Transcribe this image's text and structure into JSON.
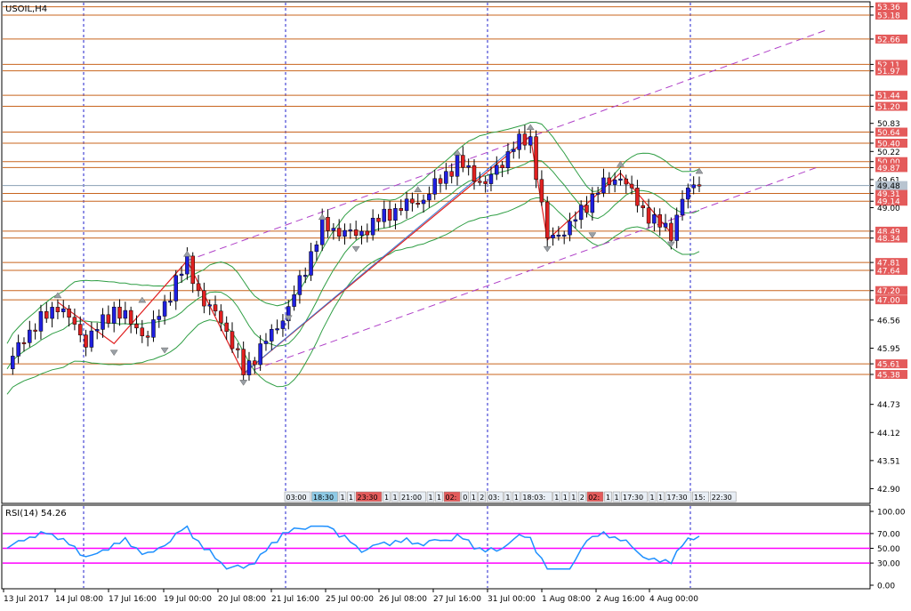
{
  "window": {
    "title": "USOIL,H4"
  },
  "main_chart": {
    "y_range": [
      42.6,
      53.45
    ],
    "price_labels": [
      "53.36",
      "53.18",
      "52.66",
      "52.11",
      "51.97",
      "51.44",
      "51.20",
      "50.83",
      "50.64",
      "50.40",
      "50.22",
      "50.00",
      "49.87",
      "49.61",
      "49.48",
      "49.31",
      "49.14",
      "49.00",
      "48.49",
      "48.34",
      "47.81",
      "47.64",
      "47.20",
      "47.00",
      "46.56",
      "45.95",
      "45.61",
      "45.38",
      "44.73",
      "44.12",
      "43.51",
      "42.90"
    ],
    "highlighted_labels": [
      "53.36",
      "53.18",
      "52.66",
      "52.11",
      "51.97",
      "51.44",
      "51.20",
      "50.64",
      "50.40",
      "50.00",
      "49.87",
      "49.31",
      "49.14",
      "48.49",
      "48.34",
      "47.81",
      "47.64",
      "47.20",
      "47.00",
      "45.61",
      "45.38"
    ],
    "current_price": "49.48",
    "levels": [
      53.36,
      53.18,
      52.66,
      52.11,
      51.97,
      51.44,
      51.2,
      50.64,
      50.4,
      50.0,
      49.87,
      49.31,
      49.14,
      48.49,
      48.34,
      47.81,
      47.64,
      47.2,
      47.0,
      45.61,
      45.38
    ],
    "session_labels": [
      "03:00",
      "18:30",
      "1",
      "1",
      "23:30",
      "1",
      "1",
      "21:00",
      "1",
      "1",
      "02:",
      "0",
      "1",
      "2",
      "03:",
      "1",
      "1",
      "18:03:",
      "1",
      "1",
      "1",
      "2",
      "02:",
      "1",
      "1",
      "17:30",
      "1",
      "1",
      "17:30",
      "15:",
      "22:30"
    ]
  },
  "rsi": {
    "label": "RSI(14) 54.26",
    "axis_labels": [
      "100.00",
      "70.00",
      "50.00",
      "30.00",
      "0.00"
    ],
    "levels": [
      70,
      50,
      30
    ]
  },
  "time_axis": {
    "labels": [
      "13 Jul 2017",
      "14 Jul 08:00",
      "17 Jul 16:00",
      "19 Jul 00:00",
      "20 Jul 08:00",
      "21 Jul 16:00",
      "25 Jul 00:00",
      "26 Jul 08:00",
      "27 Jul 16:00",
      "31 Jul 00:00",
      "1 Aug 08:00",
      "2 Aug 16:00",
      "4 Aug 00:00"
    ]
  },
  "colors": {
    "bull": "#1f1fe0",
    "bear": "#e02020",
    "level": "#c8641e",
    "highlight_bg": "#e45b5b",
    "bands": "#2f9e44",
    "channel": "#b040c8",
    "rsi_line": "#1e90ff",
    "rsi_level": "#ff00ff",
    "grid_vertical": "#2222cc"
  }
}
